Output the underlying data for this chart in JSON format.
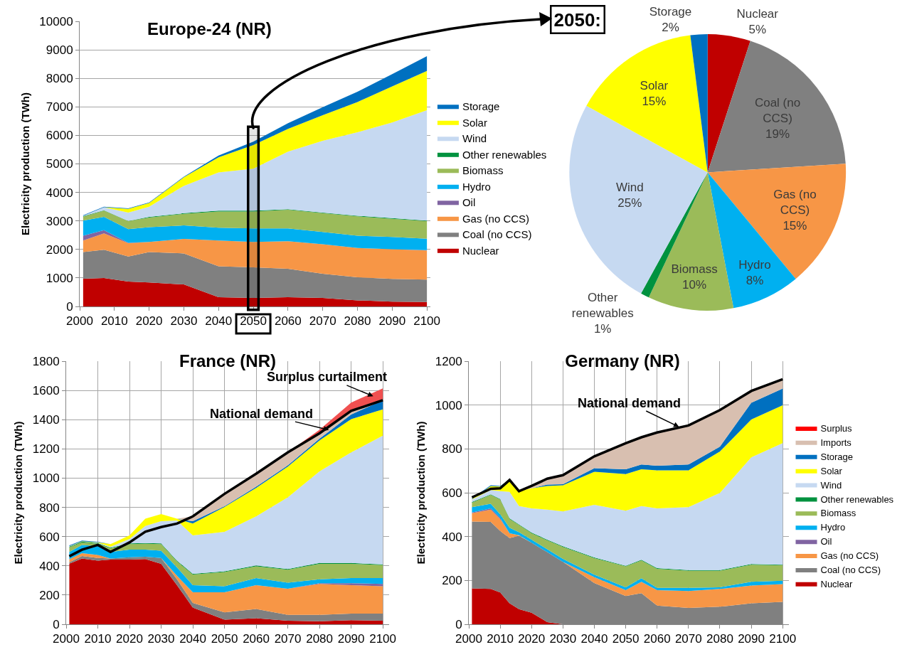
{
  "chart_data": [
    {
      "type": "area",
      "stacked": true,
      "title": "Europe-24 (NR)",
      "ylabel": "Electricity production (TWh)",
      "x": [
        2001,
        2007,
        2014,
        2020,
        2030,
        2040,
        2050,
        2060,
        2070,
        2080,
        2090,
        2100
      ],
      "xlim": [
        2000,
        2101
      ],
      "xticks": [
        2000,
        2010,
        2020,
        2030,
        2040,
        2050,
        2060,
        2070,
        2080,
        2090,
        2100
      ],
      "ylim": [
        0,
        10000
      ],
      "yticks": [
        0,
        1000,
        2000,
        3000,
        4000,
        5000,
        6000,
        7000,
        8000,
        9000,
        10000
      ],
      "grid": "y",
      "legend": "right",
      "bands": [
        {
          "axis": "x",
          "from": 2048.5,
          "to": 2051.5,
          "color": "#000000"
        }
      ],
      "series": [
        {
          "name": "Nuclear",
          "color": "#c00000",
          "values": [
            970,
            1000,
            870,
            840,
            770,
            325,
            300,
            325,
            300,
            215,
            170,
            155
          ]
        },
        {
          "name": "Coal (no CCS)",
          "color": "#808080",
          "values": [
            935,
            990,
            880,
            1065,
            1090,
            1085,
            1070,
            995,
            850,
            810,
            795,
            785
          ]
        },
        {
          "name": "Gas (no CCS)",
          "color": "#f79646",
          "values": [
            405,
            570,
            470,
            360,
            510,
            900,
            895,
            970,
            1030,
            1025,
            1045,
            1025
          ]
        },
        {
          "name": "Oil",
          "color": "#8064a2",
          "values": [
            170,
            115,
            10,
            0,
            0,
            0,
            0,
            0,
            0,
            0,
            0,
            10
          ]
        },
        {
          "name": "Hydro",
          "color": "#00b0f0",
          "values": [
            530,
            470,
            480,
            515,
            470,
            450,
            470,
            445,
            430,
            430,
            425,
            400
          ]
        },
        {
          "name": "Biomass",
          "color": "#9bbb59",
          "values": [
            140,
            215,
            280,
            340,
            410,
            570,
            595,
            655,
            660,
            680,
            640,
            615
          ]
        },
        {
          "name": "Other renewables",
          "color": "#00923f",
          "values": [
            20,
            10,
            10,
            20,
            20,
            30,
            30,
            20,
            20,
            20,
            25,
            20
          ]
        },
        {
          "name": "Wind",
          "color": "#c6d9f1",
          "values": [
            10,
            110,
            290,
            360,
            960,
            1340,
            1470,
            2020,
            2520,
            2930,
            3350,
            3870
          ]
        },
        {
          "name": "Solar",
          "color": "#ffff00",
          "values": [
            0,
            0,
            130,
            130,
            300,
            530,
            830,
            800,
            900,
            1060,
            1270,
            1380
          ]
        },
        {
          "name": "Storage",
          "color": "#0070c0",
          "values": [
            20,
            20,
            20,
            20,
            20,
            60,
            120,
            200,
            280,
            360,
            430,
            520
          ]
        }
      ]
    },
    {
      "type": "pie",
      "title": "2050:",
      "categories": [
        "Nuclear",
        "Coal (no CCS)",
        "Gas (no CCS)",
        "Hydro",
        "Biomass",
        "Other renewables",
        "Wind",
        "Solar",
        "Storage"
      ],
      "values": [
        5,
        19,
        15,
        8,
        10,
        1,
        25,
        15,
        2
      ],
      "value_labels": [
        "5%",
        "19%",
        "15%",
        "8%",
        "10%",
        "1%",
        "25%",
        "15%",
        "2%"
      ],
      "colors": [
        "#c00000",
        "#808080",
        "#f79646",
        "#00b0f0",
        "#9bbb59",
        "#00923f",
        "#c6d9f1",
        "#ffff00",
        "#0070c0"
      ]
    },
    {
      "type": "area",
      "stacked": true,
      "title": "France (NR)",
      "ylabel": "Electricity production (TWh)",
      "x": [
        2001,
        2005,
        2010,
        2014,
        2020,
        2025,
        2030,
        2035,
        2040,
        2050,
        2060,
        2070,
        2080,
        2090,
        2100
      ],
      "xlim": [
        2000,
        2102
      ],
      "xticks": [
        2000,
        2010,
        2020,
        2030,
        2040,
        2050,
        2060,
        2070,
        2080,
        2090,
        2100
      ],
      "ylim": [
        0,
        1800
      ],
      "yticks": [
        0,
        200,
        400,
        600,
        800,
        1000,
        1200,
        1400,
        1600,
        1800
      ],
      "grid": true,
      "annotations": [
        {
          "text": "Surplus curtailment",
          "x": 2097,
          "y": 1560
        },
        {
          "text": "National demand",
          "x": 2083,
          "y": 1330
        }
      ],
      "series": [
        {
          "color": "#c00000",
          "values": [
            415,
            450,
            435,
            443,
            443,
            446,
            414,
            268,
            114,
            32,
            41,
            24,
            21,
            28,
            24
          ]
        },
        {
          "color": "#808080",
          "values": [
            10,
            17,
            19,
            7,
            16,
            16,
            40,
            40,
            32,
            49,
            64,
            41,
            44,
            45,
            49
          ]
        },
        {
          "color": "#f79646",
          "values": [
            20,
            20,
            20,
            0,
            0,
            0,
            0,
            24,
            73,
            138,
            163,
            178,
            211,
            195,
            187
          ]
        },
        {
          "color": "#8064a2",
          "values": [
            0,
            0,
            0,
            0,
            0,
            0,
            0,
            0,
            0,
            0,
            0,
            0,
            5,
            13,
            16
          ]
        },
        {
          "color": "#00b0f0",
          "values": [
            50,
            56,
            61,
            45,
            52,
            49,
            49,
            57,
            49,
            41,
            48,
            41,
            27,
            35,
            40
          ]
        },
        {
          "color": "#9bbb59",
          "values": [
            32,
            17,
            16,
            24,
            37,
            40,
            45,
            41,
            73,
            97,
            81,
            89,
            106,
            98,
            89
          ]
        },
        {
          "color": "#00923f",
          "values": [
            5,
            5,
            5,
            5,
            5,
            5,
            5,
            5,
            5,
            5,
            5,
            5,
            5,
            5,
            5
          ]
        },
        {
          "color": "#c6d9f1",
          "values": [
            3,
            0,
            2,
            6,
            31,
            117,
            152,
            275,
            262,
            271,
            336,
            490,
            627,
            757,
            880
          ]
        },
        {
          "color": "#ffff00",
          "values": [
            0,
            3,
            3,
            18,
            24,
            49,
            49,
            12,
            81,
            170,
            195,
            211,
            211,
            227,
            181
          ]
        },
        {
          "color": "#0070c0",
          "values": [
            5,
            5,
            3,
            0,
            0,
            0,
            0,
            0,
            16,
            5,
            8,
            8,
            13,
            32,
            62
          ]
        },
        {
          "color": "#d8bfb0",
          "values": [
            0,
            0,
            0,
            0,
            0,
            0,
            0,
            0,
            33,
            84,
            89,
            89,
            36,
            25,
            0
          ]
        },
        {
          "color": "#f05050",
          "values": [
            0,
            0,
            0,
            0,
            0,
            0,
            0,
            0,
            0,
            0,
            0,
            0,
            24,
            57,
            81
          ]
        },
        {
          "type": "line",
          "color": "#000000",
          "values": [
            465,
            510,
            543,
            495,
            560,
            633,
            665,
            689,
            738,
            892,
            1030,
            1176,
            1306,
            1460,
            1533
          ]
        }
      ]
    },
    {
      "type": "area",
      "stacked": true,
      "title": "Germany (NR)",
      "ylabel": "Electricity production (TWh)",
      "x": [
        2001,
        2007,
        2010,
        2013,
        2016,
        2020,
        2025,
        2030,
        2040,
        2050,
        2055,
        2060,
        2070,
        2080,
        2090,
        2100
      ],
      "xlim": [
        2000,
        2102
      ],
      "xticks": [
        2000,
        2010,
        2020,
        2030,
        2040,
        2050,
        2060,
        2070,
        2080,
        2090,
        2100
      ],
      "ylim": [
        0,
        1200
      ],
      "yticks": [
        0,
        200,
        400,
        600,
        800,
        1000,
        1200
      ],
      "grid": true,
      "legend": "right",
      "annotations": [
        {
          "text": "National demand",
          "x": 2067,
          "y": 900
        }
      ],
      "series": [
        {
          "name": "Nuclear",
          "color": "#c00000",
          "values": [
            164,
            161,
            145,
            96,
            69,
            53,
            10,
            0,
            0,
            0,
            0,
            0,
            0,
            0,
            0,
            0
          ]
        },
        {
          "name": "Coal (no CCS)",
          "color": "#808080",
          "values": [
            305,
            306,
            281,
            297,
            335,
            319,
            319,
            285,
            188,
            129,
            142,
            85,
            75,
            80,
            96,
            102
          ]
        },
        {
          "name": "Gas (no CCS)",
          "color": "#f79646",
          "values": [
            38,
            56,
            54,
            22,
            2,
            0,
            0,
            0,
            27,
            27,
            52,
            71,
            77,
            81,
            81,
            81
          ]
        },
        {
          "name": "Oil",
          "color": "#8064a2",
          "values": [
            3,
            6,
            5,
            0,
            0,
            0,
            0,
            0,
            0,
            0,
            0,
            0,
            0,
            0,
            0,
            0
          ]
        },
        {
          "name": "Hydro",
          "color": "#00b0f0",
          "values": [
            24,
            21,
            17,
            25,
            14,
            14,
            13,
            13,
            11,
            13,
            16,
            10,
            14,
            8,
            17,
            16
          ]
        },
        {
          "name": "Biomass",
          "color": "#9bbb59",
          "values": [
            21,
            40,
            67,
            40,
            33,
            29,
            41,
            55,
            76,
            95,
            81,
            87,
            78,
            75,
            78,
            70
          ]
        },
        {
          "name": "Other renewables",
          "color": "#00923f",
          "values": [
            3,
            3,
            3,
            3,
            3,
            3,
            3,
            3,
            3,
            3,
            3,
            3,
            3,
            3,
            3,
            3
          ]
        },
        {
          "name": "Wind",
          "color": "#c6d9f1",
          "values": [
            11,
            19,
            35,
            121,
            83,
            111,
            137,
            159,
            240,
            251,
            245,
            273,
            287,
            352,
            486,
            554
          ]
        },
        {
          "name": "Solar",
          "color": "#ffff00",
          "values": [
            2,
            18,
            21,
            51,
            68,
            91,
            108,
            119,
            151,
            167,
            168,
            173,
            168,
            189,
            173,
            173
          ]
        },
        {
          "name": "Storage",
          "color": "#0070c0",
          "values": [
            3,
            4,
            3,
            5,
            0,
            0,
            6,
            5,
            16,
            22,
            22,
            21,
            27,
            22,
            76,
            76
          ]
        },
        {
          "name": "Imports",
          "color": "#d8bfb0",
          "values": [
            0,
            0,
            0,
            0,
            0,
            11,
            27,
            38,
            54,
            119,
            124,
            152,
            178,
            167,
            54,
            43
          ]
        },
        {
          "name": "Surplus",
          "color": "#ff0000",
          "values": [
            null,
            null,
            null,
            null,
            null,
            null,
            null,
            null,
            null,
            null,
            null,
            null,
            null,
            null,
            null,
            null
          ]
        },
        {
          "type": "line",
          "color": "#000000",
          "values": [
            579,
            618,
            620,
            658,
            607,
            631,
            664,
            680,
            766,
            826,
            853,
            875,
            907,
            977,
            1064,
            1118
          ]
        }
      ]
    }
  ]
}
